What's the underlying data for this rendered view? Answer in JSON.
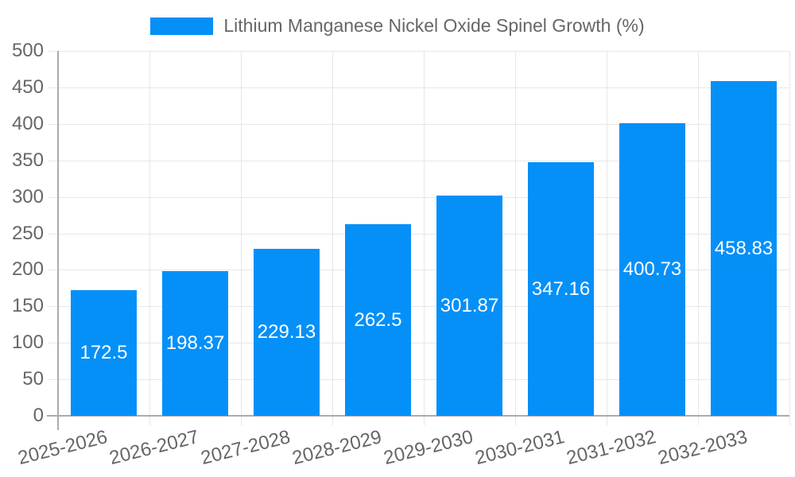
{
  "chart_data": {
    "type": "bar",
    "title": "Lithium Manganese Nickel Oxide Spinel Growth (%)",
    "categories": [
      "2025-2026",
      "2026-2027",
      "2027-2028",
      "2028-2029",
      "2029-2030",
      "2030-2031",
      "2031-2032",
      "2032-2033"
    ],
    "values": [
      172.5,
      198.37,
      229.13,
      262.5,
      301.87,
      347.16,
      400.73,
      458.83
    ],
    "xlabel": "",
    "ylabel": "",
    "ylim": [
      0,
      500
    ],
    "ytick_step": 50,
    "yticks": [
      0,
      50,
      100,
      150,
      200,
      250,
      300,
      350,
      400,
      450,
      500
    ],
    "grid": true,
    "legend_position": "top-center",
    "x_label_rotation_deg": -14,
    "colors": {
      "bar": "#0590f8",
      "value_label": "#ffffff",
      "grid": "#e7e7e7",
      "axis": "#ababab",
      "tick_text": "#666666"
    }
  }
}
